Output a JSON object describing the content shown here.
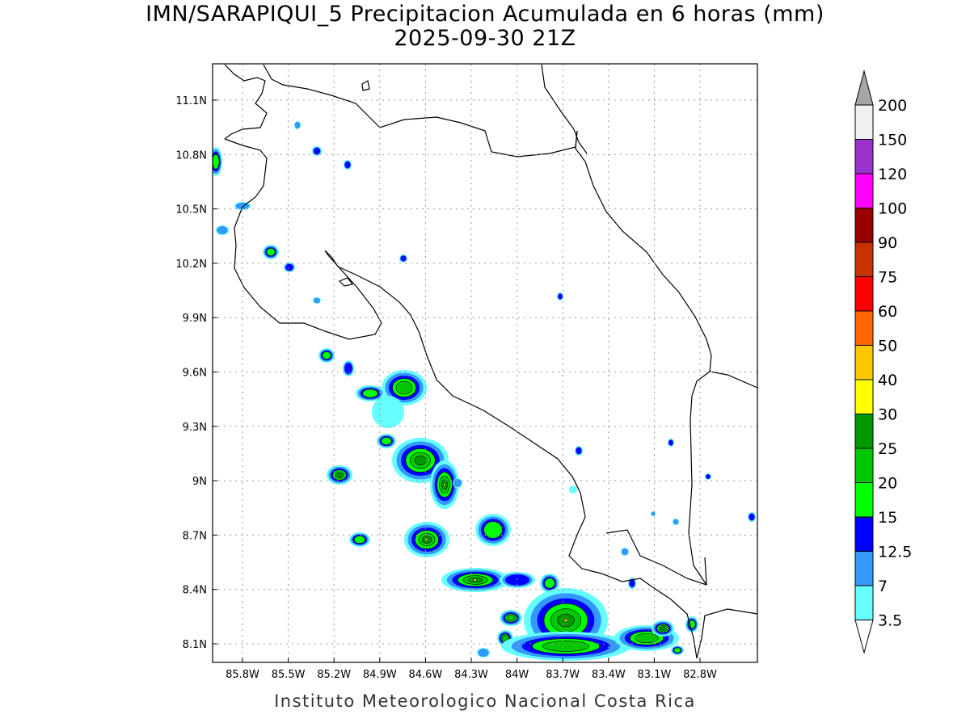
{
  "title": "IMN/SARAPIQUI_5 Precipitacion Acumulada en 6 horas (mm)",
  "subtitle": "2025-09-30 21Z",
  "footer": "Instituto Meteorologico Nacional Costa Rica",
  "map": {
    "lon_range": [
      -86.0,
      -82.42
    ],
    "lat_range": [
      8.0,
      11.3
    ],
    "lon_ticks": [
      "85.8W",
      "85.5W",
      "85.2W",
      "84.9W",
      "84.6W",
      "84.3W",
      "84W",
      "83.7W",
      "83.4W",
      "83.1W",
      "82.8W"
    ],
    "lat_ticks": [
      "11.1N",
      "10.8N",
      "10.5N",
      "10.2N",
      "9.9N",
      "9.6N",
      "9.3N",
      "9N",
      "8.7N",
      "8.4N",
      "8.1N"
    ]
  },
  "colorbar": {
    "labels": [
      "200",
      "150",
      "120",
      "100",
      "90",
      "75",
      "60",
      "50",
      "40",
      "30",
      "25",
      "20",
      "15",
      "12.5",
      "7",
      "3.5"
    ],
    "colors_top_to_bottom": [
      "#f0f0f0",
      "#9933cc",
      "#ff00ff",
      "#990000",
      "#c83200",
      "#ff0000",
      "#ff6600",
      "#ffc800",
      "#ffff00",
      "#009900",
      "#00c800",
      "#00ff00",
      "#0000ff",
      "#3399ff",
      "#66ffff"
    ],
    "over_color": "#a6a6a6",
    "under_color": "#ffffff"
  }
}
